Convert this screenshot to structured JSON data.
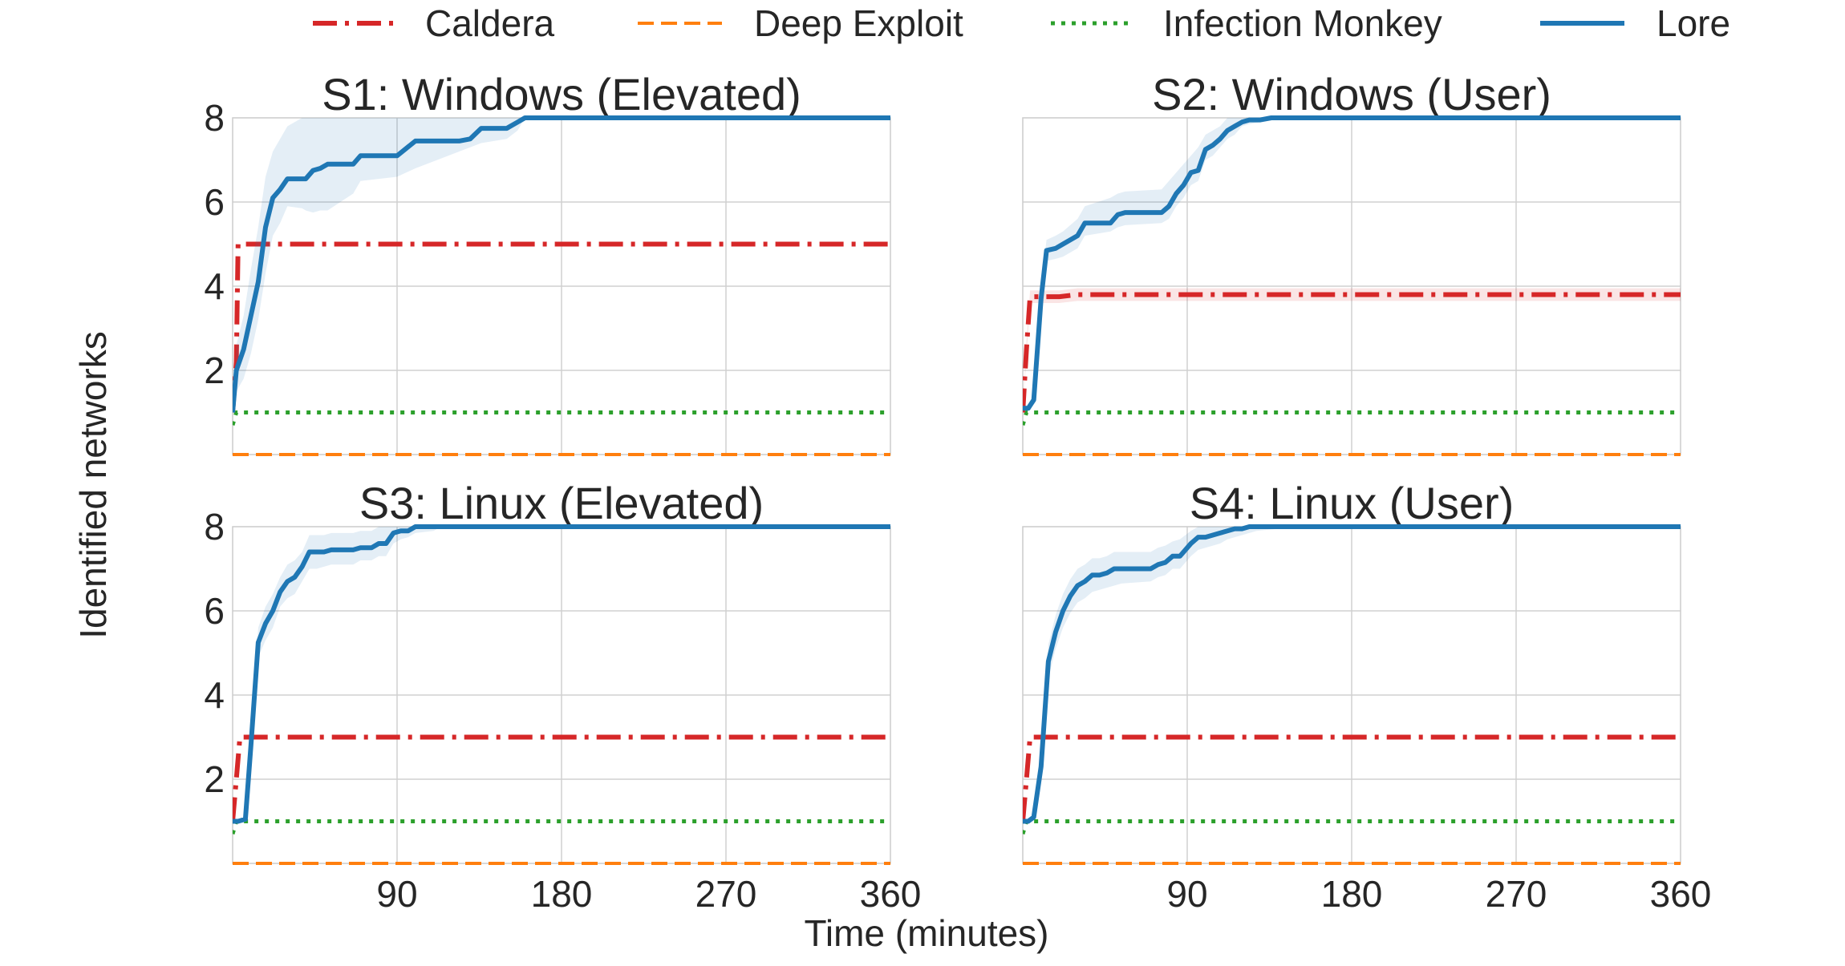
{
  "figure": {
    "ylabel": "Identified networks",
    "xlabel": "Time (minutes)"
  },
  "legend": {
    "placement": "top-center",
    "items": [
      {
        "label": "Caldera",
        "color": "#d62728",
        "style": "dashdot"
      },
      {
        "label": "Deep Exploit",
        "color": "#ff7f0e",
        "style": "dashed"
      },
      {
        "label": "Infection Monkey",
        "color": "#2ca02c",
        "style": "dotted"
      },
      {
        "label": "Lore",
        "color": "#1f77b4",
        "style": "solid"
      }
    ]
  },
  "chart_data": [
    {
      "type": "line",
      "title": "S1: Windows (Elevated)",
      "xlim": [
        0,
        360
      ],
      "ylim": [
        0,
        8
      ],
      "xticks": [
        90,
        180,
        270,
        360
      ],
      "yticks": [
        2,
        4,
        6,
        8
      ],
      "grid": true,
      "series": [
        {
          "name": "Caldera",
          "color": "#d62728",
          "style": "dashdot",
          "x": [
            0,
            2,
            3,
            360
          ],
          "y": [
            1,
            2.2,
            5,
            5
          ]
        },
        {
          "name": "Deep Exploit",
          "color": "#ff7f0e",
          "style": "dashed",
          "x": [
            0,
            360
          ],
          "y": [
            0,
            0
          ]
        },
        {
          "name": "Infection Monkey",
          "color": "#2ca02c",
          "style": "dotted",
          "x": [
            0,
            2,
            360
          ],
          "y": [
            0.7,
            1,
            1
          ]
        },
        {
          "name": "Lore",
          "color": "#1f77b4",
          "style": "solid",
          "x": [
            0,
            2,
            6,
            10,
            14,
            18,
            22,
            26,
            30,
            38,
            40,
            44,
            48,
            52,
            66,
            70,
            90,
            100,
            124,
            130,
            136,
            150,
            156,
            160,
            360
          ],
          "y": [
            1,
            2,
            2.5,
            3.3,
            4.1,
            5.4,
            6.1,
            6.3,
            6.55,
            6.55,
            6.55,
            6.75,
            6.8,
            6.9,
            6.9,
            7.1,
            7.1,
            7.45,
            7.45,
            7.5,
            7.75,
            7.75,
            7.9,
            8,
            8
          ],
          "band_low": [
            1,
            1.5,
            1.8,
            2.4,
            3.2,
            4.3,
            5.2,
            5.5,
            5.9,
            5.85,
            5.8,
            5.75,
            5.8,
            5.8,
            6.2,
            6.5,
            6.6,
            6.8,
            7.2,
            7.3,
            7.4,
            7.5,
            7.7,
            8,
            8
          ],
          "band_high": [
            1,
            2.6,
            3.3,
            4.4,
            5.4,
            6.6,
            7.2,
            7.5,
            7.8,
            8,
            8,
            8,
            8,
            8,
            8,
            8,
            8,
            8,
            8,
            8,
            8,
            8,
            8,
            8,
            8
          ]
        }
      ]
    },
    {
      "type": "line",
      "title": "S2: Windows (User)",
      "xlim": [
        0,
        360
      ],
      "ylim": [
        0,
        8
      ],
      "xticks": [
        90,
        180,
        270,
        360
      ],
      "yticks": [
        2,
        4,
        6,
        8
      ],
      "grid": true,
      "series": [
        {
          "name": "Caldera",
          "color": "#d62728",
          "style": "dashdot",
          "x": [
            0,
            2,
            4,
            20,
            30,
            360
          ],
          "y": [
            1,
            2.5,
            3.75,
            3.75,
            3.8,
            3.8
          ],
          "band_low": [
            1,
            2.3,
            3.6,
            3.6,
            3.65,
            3.65
          ],
          "band_high": [
            1,
            2.7,
            3.9,
            3.9,
            3.95,
            3.95
          ]
        },
        {
          "name": "Deep Exploit",
          "color": "#ff7f0e",
          "style": "dashed",
          "x": [
            0,
            360
          ],
          "y": [
            0,
            0
          ]
        },
        {
          "name": "Infection Monkey",
          "color": "#2ca02c",
          "style": "dotted",
          "x": [
            0,
            2,
            360
          ],
          "y": [
            0.7,
            1,
            1
          ]
        },
        {
          "name": "Lore",
          "color": "#1f77b4",
          "style": "solid",
          "x": [
            0,
            3,
            6,
            10,
            13,
            18,
            22,
            30,
            34,
            48,
            52,
            56,
            76,
            80,
            84,
            88,
            92,
            96,
            100,
            104,
            108,
            112,
            116,
            120,
            124,
            130,
            136,
            140,
            150,
            360
          ],
          "y": [
            1.1,
            1.1,
            1.3,
            3.7,
            4.85,
            4.9,
            5.0,
            5.2,
            5.5,
            5.5,
            5.7,
            5.75,
            5.75,
            5.9,
            6.2,
            6.4,
            6.7,
            6.75,
            7.25,
            7.35,
            7.5,
            7.7,
            7.8,
            7.9,
            7.95,
            7.95,
            8,
            8,
            8,
            8
          ],
          "band_low": [
            1.1,
            1.1,
            1.2,
            3.4,
            4.6,
            4.65,
            4.7,
            4.9,
            5.2,
            5.3,
            5.4,
            5.45,
            5.5,
            5.6,
            5.9,
            6.1,
            6.4,
            6.5,
            7.0,
            7.1,
            7.3,
            7.5,
            7.6,
            7.8,
            7.85,
            7.9,
            8,
            8,
            8,
            8
          ],
          "band_high": [
            1.1,
            1.1,
            1.4,
            4.0,
            5.1,
            5.2,
            5.3,
            5.6,
            5.9,
            6.1,
            6.2,
            6.25,
            6.3,
            6.5,
            6.7,
            6.9,
            7.1,
            7.3,
            7.6,
            7.7,
            7.8,
            8,
            8,
            8,
            8,
            8,
            8,
            8,
            8,
            8
          ]
        }
      ]
    },
    {
      "type": "line",
      "title": "S3: Linux (Elevated)",
      "xlim": [
        0,
        360
      ],
      "ylim": [
        0,
        8
      ],
      "xticks": [
        90,
        180,
        270,
        360
      ],
      "yticks": [
        2,
        4,
        6,
        8
      ],
      "grid": true,
      "series": [
        {
          "name": "Caldera",
          "color": "#d62728",
          "style": "dashdot",
          "x": [
            0,
            2,
            4,
            360
          ],
          "y": [
            1,
            2,
            3,
            3
          ]
        },
        {
          "name": "Deep Exploit",
          "color": "#ff7f0e",
          "style": "dashed",
          "x": [
            0,
            360
          ],
          "y": [
            0,
            0
          ]
        },
        {
          "name": "Infection Monkey",
          "color": "#2ca02c",
          "style": "dotted",
          "x": [
            0,
            2,
            360
          ],
          "y": [
            0.7,
            1,
            1
          ]
        },
        {
          "name": "Lore",
          "color": "#1f77b4",
          "style": "solid",
          "x": [
            0,
            3,
            7,
            10,
            14,
            18,
            22,
            26,
            30,
            34,
            38,
            42,
            46,
            50,
            54,
            66,
            70,
            76,
            80,
            84,
            88,
            92,
            96,
            100,
            110,
            114,
            120,
            360
          ],
          "y": [
            1,
            1,
            1.05,
            2.8,
            5.25,
            5.7,
            6.0,
            6.45,
            6.7,
            6.8,
            7.05,
            7.4,
            7.4,
            7.4,
            7.45,
            7.45,
            7.5,
            7.5,
            7.6,
            7.6,
            7.85,
            7.9,
            7.9,
            8,
            8,
            8,
            8,
            8
          ],
          "band_low": [
            1,
            1,
            1.05,
            2.5,
            4.9,
            5.3,
            5.6,
            6.1,
            6.3,
            6.4,
            6.7,
            7.0,
            7.0,
            7.05,
            7.1,
            7.1,
            7.2,
            7.2,
            7.3,
            7.3,
            7.6,
            7.7,
            7.75,
            7.85,
            7.9,
            8,
            8,
            8
          ],
          "band_high": [
            1,
            1,
            1.05,
            3.1,
            5.6,
            6.1,
            6.4,
            6.8,
            7.1,
            7.2,
            7.4,
            7.8,
            7.8,
            7.8,
            7.85,
            7.85,
            7.9,
            7.9,
            8,
            8,
            8,
            8,
            8,
            8,
            8,
            8,
            8,
            8
          ]
        }
      ]
    },
    {
      "type": "line",
      "title": "S4: Linux (User)",
      "xlim": [
        0,
        360
      ],
      "ylim": [
        0,
        8
      ],
      "xticks": [
        90,
        180,
        270,
        360
      ],
      "yticks": [
        2,
        4,
        6,
        8
      ],
      "grid": true,
      "series": [
        {
          "name": "Caldera",
          "color": "#d62728",
          "style": "dashdot",
          "x": [
            0,
            2,
            4,
            360
          ],
          "y": [
            1,
            2,
            3,
            3
          ]
        },
        {
          "name": "Deep Exploit",
          "color": "#ff7f0e",
          "style": "dashed",
          "x": [
            0,
            360
          ],
          "y": [
            0,
            0
          ]
        },
        {
          "name": "Infection Monkey",
          "color": "#2ca02c",
          "style": "dotted",
          "x": [
            0,
            2,
            360
          ],
          "y": [
            0.7,
            1,
            1
          ]
        },
        {
          "name": "Lore",
          "color": "#1f77b4",
          "style": "solid",
          "x": [
            0,
            3,
            6,
            10,
            14,
            18,
            22,
            26,
            30,
            34,
            38,
            42,
            46,
            50,
            54,
            70,
            74,
            78,
            82,
            86,
            92,
            96,
            100,
            104,
            108,
            112,
            116,
            120,
            124,
            128,
            140,
            150,
            160,
            360
          ],
          "y": [
            1,
            1,
            1.1,
            2.3,
            4.8,
            5.5,
            6.0,
            6.35,
            6.6,
            6.7,
            6.85,
            6.85,
            6.9,
            7.0,
            7.0,
            7.0,
            7.1,
            7.15,
            7.3,
            7.3,
            7.6,
            7.75,
            7.75,
            7.8,
            7.85,
            7.9,
            7.95,
            7.95,
            8,
            8,
            8,
            8,
            8,
            8
          ],
          "band_low": [
            1,
            1,
            1.1,
            2.0,
            4.4,
            5.1,
            5.6,
            5.95,
            6.2,
            6.3,
            6.45,
            6.5,
            6.55,
            6.6,
            6.65,
            6.7,
            6.8,
            6.85,
            7.0,
            7.0,
            7.3,
            7.45,
            7.5,
            7.55,
            7.6,
            7.7,
            7.75,
            7.8,
            7.85,
            7.9,
            7.95,
            8,
            8,
            8
          ],
          "band_high": [
            1,
            1,
            1.1,
            2.6,
            5.2,
            5.9,
            6.4,
            6.75,
            7.0,
            7.1,
            7.25,
            7.25,
            7.3,
            7.4,
            7.4,
            7.4,
            7.5,
            7.55,
            7.65,
            7.7,
            7.9,
            8,
            8,
            8,
            8,
            8,
            8,
            8,
            8,
            8,
            8,
            8,
            8,
            8
          ]
        }
      ]
    }
  ]
}
